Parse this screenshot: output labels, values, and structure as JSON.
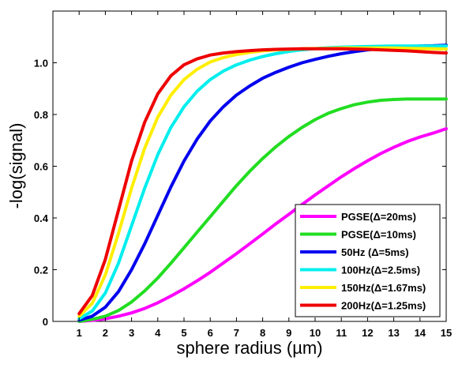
{
  "chart_data": {
    "type": "line",
    "xlabel": "sphere radius (µm)",
    "ylabel": "-log(signal)",
    "xlim": [
      0,
      15
    ],
    "ylim": [
      0,
      1.2
    ],
    "xticks": [
      1,
      2,
      3,
      4,
      5,
      6,
      7,
      8,
      9,
      10,
      11,
      12,
      13,
      14,
      15
    ],
    "yticks": [
      0,
      0.2,
      0.4,
      0.6,
      0.8,
      1.0
    ],
    "ytick_labels": [
      "0",
      "0.2",
      "0.4",
      "0.6",
      "0.8",
      "1.0"
    ],
    "grid": false,
    "legend_position": "bottom-right",
    "x": [
      1,
      1.5,
      2,
      2.5,
      3,
      3.5,
      4,
      4.5,
      5,
      5.5,
      6,
      6.5,
      7,
      7.5,
      8,
      8.5,
      9,
      9.5,
      10,
      10.5,
      11,
      11.5,
      12,
      12.5,
      13,
      13.5,
      14,
      14.5,
      15
    ],
    "series": [
      {
        "name": "PGSE(Δ=20ms)",
        "color": "#ff00ff",
        "values": [
          0.0,
          0.004,
          0.01,
          0.02,
          0.033,
          0.05,
          0.072,
          0.098,
          0.126,
          0.157,
          0.19,
          0.226,
          0.262,
          0.3,
          0.338,
          0.377,
          0.414,
          0.452,
          0.489,
          0.524,
          0.559,
          0.591,
          0.621,
          0.649,
          0.673,
          0.695,
          0.713,
          0.728,
          0.745
        ]
      },
      {
        "name": "PGSE(Δ=10ms)",
        "color": "#22dd22",
        "values": [
          0.0,
          0.008,
          0.02,
          0.042,
          0.075,
          0.118,
          0.168,
          0.225,
          0.285,
          0.345,
          0.405,
          0.465,
          0.525,
          0.58,
          0.63,
          0.675,
          0.715,
          0.75,
          0.78,
          0.805,
          0.823,
          0.838,
          0.848,
          0.855,
          0.858,
          0.86,
          0.86,
          0.86,
          0.86
        ]
      },
      {
        "name": "50Hz (Δ=5ms)",
        "color": "#0000ee",
        "values": [
          0.005,
          0.02,
          0.055,
          0.115,
          0.2,
          0.3,
          0.41,
          0.52,
          0.62,
          0.705,
          0.775,
          0.83,
          0.875,
          0.91,
          0.94,
          0.963,
          0.983,
          1.0,
          1.013,
          1.025,
          1.035,
          1.043,
          1.05,
          1.055,
          1.06,
          1.062,
          1.065,
          1.066,
          1.068
        ]
      },
      {
        "name": "100Hz(Δ=2.5ms)",
        "color": "#00eeee",
        "values": [
          0.01,
          0.04,
          0.11,
          0.225,
          0.37,
          0.515,
          0.645,
          0.75,
          0.83,
          0.89,
          0.935,
          0.968,
          0.992,
          1.01,
          1.024,
          1.035,
          1.044,
          1.05,
          1.055,
          1.058,
          1.06,
          1.062,
          1.063,
          1.064,
          1.065,
          1.065,
          1.065,
          1.065,
          1.065
        ]
      },
      {
        "name": "150Hz(Δ=1.67ms)",
        "color": "#ffee00",
        "values": [
          0.02,
          0.07,
          0.18,
          0.34,
          0.515,
          0.67,
          0.79,
          0.875,
          0.935,
          0.975,
          1.003,
          1.02,
          1.032,
          1.04,
          1.046,
          1.05,
          1.052,
          1.054,
          1.055,
          1.056,
          1.057,
          1.057,
          1.057,
          1.057,
          1.057,
          1.056,
          1.055,
          1.054,
          1.053
        ]
      },
      {
        "name": "200Hz(Δ=1.25ms)",
        "color": "#ee0000",
        "values": [
          0.03,
          0.1,
          0.24,
          0.43,
          0.62,
          0.77,
          0.88,
          0.95,
          0.992,
          1.015,
          1.03,
          1.038,
          1.043,
          1.047,
          1.05,
          1.052,
          1.053,
          1.054,
          1.054,
          1.054,
          1.054,
          1.053,
          1.052,
          1.05,
          1.048,
          1.046,
          1.043,
          1.04,
          1.038
        ]
      }
    ]
  }
}
